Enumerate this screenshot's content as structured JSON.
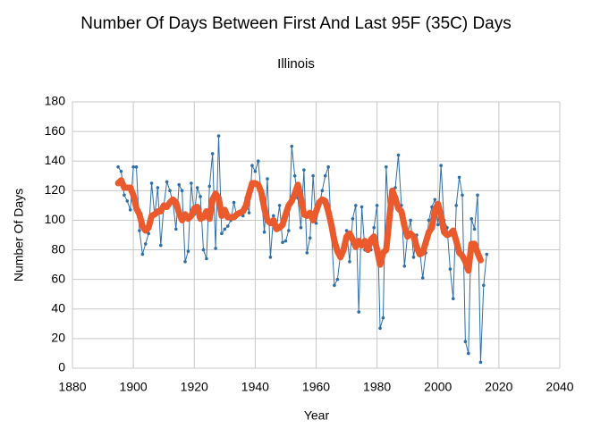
{
  "chart_data": {
    "type": "line",
    "title": "Number Of Days Between First And Last 95F (35C) Days",
    "subtitle": "Illinois",
    "x_label": "Year",
    "y_label": "Number Of Days",
    "x": [
      1895,
      1896,
      1897,
      1898,
      1899,
      1900,
      1901,
      1902,
      1903,
      1904,
      1905,
      1906,
      1907,
      1908,
      1909,
      1910,
      1911,
      1912,
      1913,
      1914,
      1915,
      1916,
      1917,
      1918,
      1919,
      1920,
      1921,
      1922,
      1923,
      1924,
      1925,
      1926,
      1927,
      1928,
      1929,
      1930,
      1931,
      1932,
      1933,
      1934,
      1935,
      1936,
      1937,
      1938,
      1939,
      1940,
      1941,
      1942,
      1943,
      1944,
      1945,
      1946,
      1947,
      1948,
      1949,
      1950,
      1951,
      1952,
      1953,
      1954,
      1955,
      1956,
      1957,
      1958,
      1959,
      1960,
      1961,
      1962,
      1963,
      1964,
      1965,
      1966,
      1967,
      1968,
      1969,
      1970,
      1971,
      1972,
      1973,
      1974,
      1975,
      1976,
      1977,
      1978,
      1979,
      1980,
      1981,
      1982,
      1983,
      1984,
      1985,
      1986,
      1987,
      1988,
      1989,
      1990,
      1991,
      1992,
      1993,
      1994,
      1995,
      1996,
      1997,
      1998,
      1999,
      2000,
      2001,
      2002,
      2003,
      2004,
      2005,
      2006,
      2007,
      2008,
      2009,
      2010,
      2011,
      2012,
      2013,
      2014,
      2015,
      2016
    ],
    "series": [
      {
        "color": "#2f6fa8",
        "markers": true,
        "width": 1,
        "values": [
          136,
          133,
          117,
          113,
          107,
          136,
          136,
          93,
          77,
          84,
          91,
          125,
          103,
          122,
          83,
          110,
          126,
          120,
          112,
          94,
          124,
          120,
          72,
          79,
          125,
          104,
          122,
          116,
          80,
          74,
          123,
          145,
          81,
          157,
          91,
          94,
          96,
          100,
          112,
          103,
          106,
          103,
          115,
          105,
          137,
          133,
          140,
          117,
          92,
          128,
          75,
          103,
          95,
          110,
          85,
          86,
          93,
          150,
          130,
          115,
          95,
          134,
          78,
          88,
          130,
          98,
          110,
          120,
          130,
          136,
          92,
          56,
          60,
          77,
          80,
          93,
          72,
          101,
          110,
          38,
          109,
          80,
          85,
          80,
          95,
          110,
          27,
          34,
          136,
          95,
          108,
          122,
          144,
          110,
          69,
          90,
          100,
          75,
          90,
          80,
          61,
          78,
          100,
          109,
          114,
          97,
          137,
          100,
          95,
          67,
          47,
          110,
          129,
          117,
          18,
          10,
          101,
          94,
          117,
          4,
          56,
          77
        ]
      },
      {
        "color": "#ea5a2c",
        "markers": false,
        "width": 7,
        "values": [
          125,
          127,
          122,
          122,
          122,
          117,
          108,
          104,
          96,
          93,
          95,
          103,
          104,
          106,
          106,
          110,
          109,
          112,
          114,
          112,
          105,
          100,
          104,
          101,
          103,
          108,
          109,
          101,
          102,
          106,
          101,
          114,
          118,
          115,
          103,
          107,
          102,
          102,
          102,
          104,
          105,
          106,
          110,
          118,
          125,
          125,
          124,
          119,
          108,
          100,
          98,
          100,
          94,
          95,
          97,
          104,
          110,
          113,
          118,
          124,
          115,
          104,
          103,
          105,
          100,
          106,
          112,
          114,
          113,
          106,
          97,
          86,
          79,
          75,
          80,
          89,
          91,
          87,
          82,
          86,
          83,
          86,
          80,
          87,
          89,
          80,
          70,
          78,
          80,
          100,
          120,
          115,
          108,
          106,
          96,
          89,
          91,
          89,
          82,
          77,
          78,
          85,
          92,
          95,
          107,
          111,
          103,
          92,
          90,
          91,
          93,
          86,
          78,
          76,
          72,
          66,
          84,
          84,
          78,
          73,
          null,
          null
        ]
      }
    ],
    "xlim": [
      1880,
      2040
    ],
    "xticks": [
      1880,
      1900,
      1920,
      1940,
      1960,
      1980,
      2000,
      2020,
      2040
    ],
    "ylim": [
      0,
      180
    ],
    "yticks": [
      0,
      20,
      40,
      60,
      80,
      100,
      120,
      140,
      160,
      180
    ],
    "grid": true
  }
}
